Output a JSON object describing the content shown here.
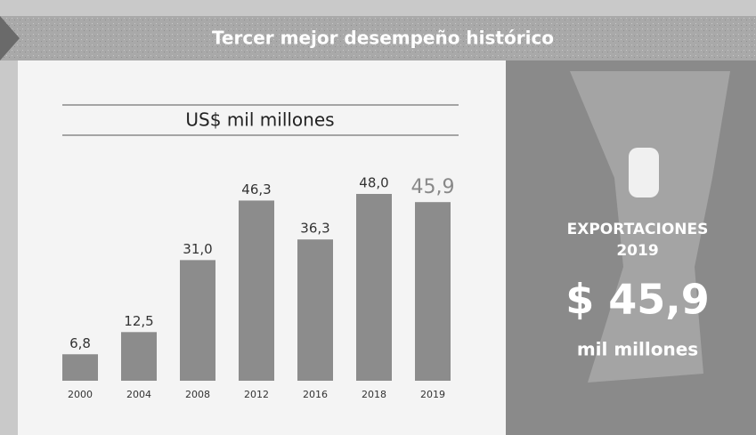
{
  "chart_data": {
    "type": "bar",
    "title": "Tercer mejor desempeño histórico",
    "subtitle": "US$ mil millones",
    "categories": [
      "2000",
      "2004",
      "2008",
      "2012",
      "2016",
      "2018",
      "2019"
    ],
    "values": [
      6.8,
      12.5,
      31.0,
      46.3,
      36.3,
      48.0,
      45.9
    ],
    "value_labels": [
      "6,8",
      "12,5",
      "31,0",
      "46,3",
      "36,3",
      "48,0",
      "45,9"
    ],
    "color": "#8c8c8c",
    "annotations": [
      "EXPORTACIONES",
      "2019",
      "$ 45,9",
      "mil millones"
    ]
  }
}
